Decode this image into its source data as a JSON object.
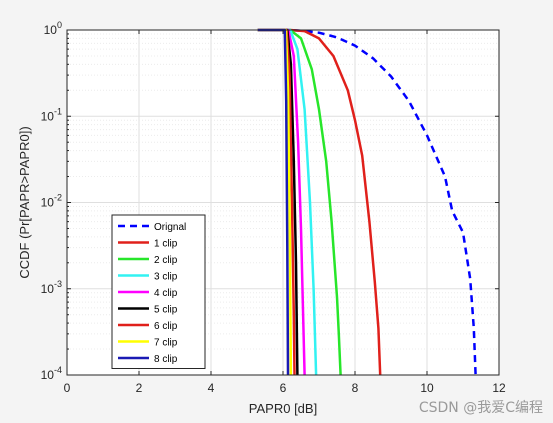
{
  "chart_data": {
    "type": "line",
    "xlabel": "PAPR0 [dB]",
    "ylabel": "CCDF (Pr[PAPR>PAPR0])",
    "xlim": [
      0,
      12
    ],
    "ylim": [
      0.0001,
      1
    ],
    "yscale": "log",
    "grid": true,
    "x_ticks": [
      "0",
      "2",
      "4",
      "6",
      "8",
      "10",
      "12"
    ],
    "y_ticks": [
      {
        "base": "10",
        "exp": "0"
      },
      {
        "base": "10",
        "exp": "-1"
      },
      {
        "base": "10",
        "exp": "-2"
      },
      {
        "base": "10",
        "exp": "-3"
      },
      {
        "base": "10",
        "exp": "-4"
      }
    ],
    "legend_position": "bottom-left",
    "series": [
      {
        "name": "Orignal",
        "color": "#0000ff",
        "dash": true,
        "points": [
          [
            5.3,
            1
          ],
          [
            6.2,
            1
          ],
          [
            6.5,
            0.98
          ],
          [
            7.0,
            0.93
          ],
          [
            7.5,
            0.82
          ],
          [
            8.0,
            0.66
          ],
          [
            8.5,
            0.47
          ],
          [
            9.0,
            0.29
          ],
          [
            9.5,
            0.15
          ],
          [
            10.0,
            0.06
          ],
          [
            10.5,
            0.02
          ],
          [
            10.7,
            0.008
          ],
          [
            11.0,
            0.0045
          ],
          [
            11.2,
            0.0013
          ],
          [
            11.3,
            0.00035
          ],
          [
            11.35,
            0.0001
          ]
        ]
      },
      {
        "name": "1 clip",
        "color": "#e0201b",
        "points": [
          [
            5.3,
            1
          ],
          [
            6.2,
            1
          ],
          [
            6.6,
            0.97
          ],
          [
            7.0,
            0.8
          ],
          [
            7.4,
            0.5
          ],
          [
            7.8,
            0.2
          ],
          [
            8.0,
            0.09
          ],
          [
            8.2,
            0.035
          ],
          [
            8.4,
            0.006
          ],
          [
            8.55,
            0.0012
          ],
          [
            8.65,
            0.00035
          ],
          [
            8.7,
            0.0001
          ]
        ]
      },
      {
        "name": "2 clip",
        "color": "#27e62a",
        "points": [
          [
            5.3,
            1
          ],
          [
            6.2,
            1
          ],
          [
            6.5,
            0.8
          ],
          [
            6.8,
            0.35
          ],
          [
            7.0,
            0.12
          ],
          [
            7.2,
            0.03
          ],
          [
            7.35,
            0.006
          ],
          [
            7.5,
            0.0008
          ],
          [
            7.55,
            0.0003
          ],
          [
            7.6,
            0.0001
          ]
        ]
      },
      {
        "name": "3 clip",
        "color": "#32f2f2",
        "points": [
          [
            5.3,
            1
          ],
          [
            6.2,
            1
          ],
          [
            6.4,
            0.6
          ],
          [
            6.6,
            0.12
          ],
          [
            6.75,
            0.01
          ],
          [
            6.85,
            0.001
          ],
          [
            6.92,
            0.0001
          ]
        ]
      },
      {
        "name": "4 clip",
        "color": "#ff00ff",
        "points": [
          [
            5.3,
            1
          ],
          [
            6.15,
            1
          ],
          [
            6.3,
            0.5
          ],
          [
            6.42,
            0.05
          ],
          [
            6.5,
            0.005
          ],
          [
            6.55,
            0.0007
          ],
          [
            6.6,
            0.0001
          ]
        ]
      },
      {
        "name": "5 clip",
        "color": "#000000",
        "points": [
          [
            5.3,
            1
          ],
          [
            6.12,
            1
          ],
          [
            6.22,
            0.4
          ],
          [
            6.3,
            0.03
          ],
          [
            6.36,
            0.002
          ],
          [
            6.4,
            0.0001
          ]
        ]
      },
      {
        "name": "6 clip",
        "color": "#e0201b",
        "points": [
          [
            5.3,
            1
          ],
          [
            6.1,
            1
          ],
          [
            6.18,
            0.3
          ],
          [
            6.25,
            0.01
          ],
          [
            6.3,
            0.0005
          ],
          [
            6.32,
            0.0001
          ]
        ]
      },
      {
        "name": "7 clip",
        "color": "#ffff00",
        "points": [
          [
            5.3,
            1
          ],
          [
            6.08,
            1
          ],
          [
            6.14,
            0.2
          ],
          [
            6.19,
            0.005
          ],
          [
            6.22,
            0.0001
          ]
        ]
      },
      {
        "name": "8 clip",
        "color": "#1a1ab4",
        "points": [
          [
            5.3,
            1
          ],
          [
            6.05,
            1
          ],
          [
            6.09,
            0.15
          ],
          [
            6.12,
            0.003
          ],
          [
            6.14,
            0.0001
          ]
        ]
      }
    ]
  },
  "watermark": "CSDN @我爱C编程"
}
